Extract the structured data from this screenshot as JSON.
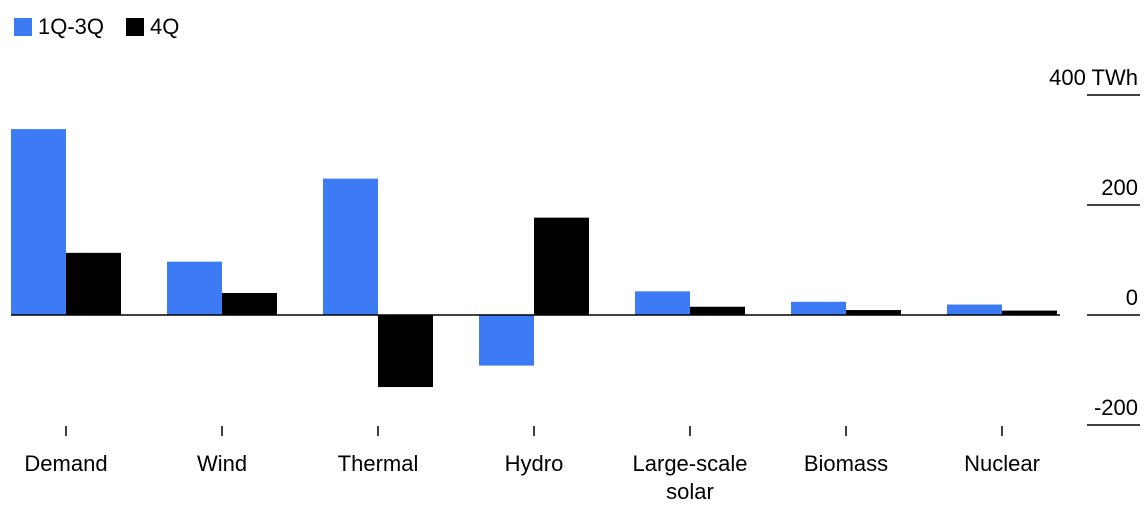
{
  "chart_data": {
    "type": "bar",
    "title": "",
    "xlabel": "",
    "ylabel": "",
    "y_unit": "TWh",
    "ylim": [
      -200,
      400
    ],
    "yticks": [
      400,
      200,
      0,
      -200
    ],
    "ytick_labels": [
      "400 TWh",
      "200",
      "0",
      "-200"
    ],
    "categories": [
      "Demand",
      "Wind",
      "Thermal",
      "Hydro",
      "Large-scale solar",
      "Biomass",
      "Nuclear"
    ],
    "category_lines": [
      [
        "Demand"
      ],
      [
        "Wind"
      ],
      [
        "Thermal"
      ],
      [
        "Hydro"
      ],
      [
        "Large-scale",
        "solar"
      ],
      [
        "Biomass"
      ],
      [
        "Nuclear"
      ]
    ],
    "series": [
      {
        "name": "1Q-3Q",
        "color": "#3d7bf4",
        "values": [
          338,
          97,
          248,
          -92,
          43,
          24,
          19
        ]
      },
      {
        "name": "4Q",
        "color": "#000000",
        "values": [
          113,
          40,
          -131,
          177,
          15,
          9,
          8
        ]
      }
    ],
    "legend_position": "top-left",
    "grid": false
  }
}
